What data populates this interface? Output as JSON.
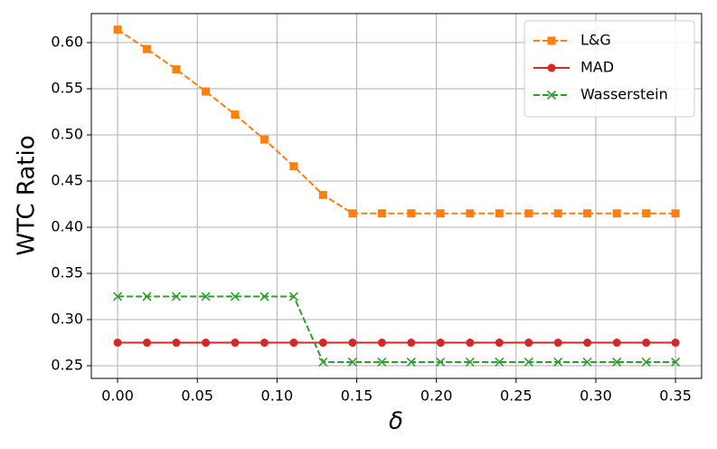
{
  "chart_data": {
    "type": "line",
    "xlabel": "δ",
    "ylabel": "WTC Ratio",
    "x": [
      0,
      0.0184,
      0.0368,
      0.0553,
      0.0737,
      0.0921,
      0.1105,
      0.1289,
      0.1474,
      0.1658,
      0.1842,
      0.2026,
      0.2211,
      0.2395,
      0.2579,
      0.2763,
      0.2947,
      0.3132,
      0.3316,
      0.35
    ],
    "series": [
      {
        "name": "L&G",
        "color": "#ff7f0e",
        "linestyle": "dashed",
        "marker": "square",
        "values": [
          0.614,
          0.593,
          0.571,
          0.547,
          0.522,
          0.495,
          0.466,
          0.435,
          0.415,
          0.415,
          0.415,
          0.415,
          0.415,
          0.415,
          0.415,
          0.415,
          0.415,
          0.415,
          0.415,
          0.415
        ]
      },
      {
        "name": "MAD",
        "color": "#d62728",
        "linestyle": "solid",
        "marker": "circle",
        "values": [
          0.275,
          0.275,
          0.275,
          0.275,
          0.275,
          0.275,
          0.275,
          0.275,
          0.275,
          0.275,
          0.275,
          0.275,
          0.275,
          0.275,
          0.275,
          0.275,
          0.275,
          0.275,
          0.275,
          0.275
        ]
      },
      {
        "name": "Wasserstein",
        "color": "#2ca02c",
        "linestyle": "dashed",
        "marker": "x",
        "values": [
          0.325,
          0.325,
          0.325,
          0.325,
          0.325,
          0.325,
          0.325,
          0.254,
          0.254,
          0.254,
          0.254,
          0.254,
          0.254,
          0.254,
          0.254,
          0.254,
          0.254,
          0.254,
          0.254,
          0.254
        ]
      }
    ],
    "xlim": [
      -0.0165,
      0.3664
    ],
    "ylim": [
      0.2363,
      0.6314
    ],
    "xticks": [
      {
        "value": 0,
        "label": "0.00"
      },
      0.05,
      {
        "value": 0.1,
        "label": "0.10"
      },
      0.15,
      {
        "value": 0.2,
        "label": "0.20"
      },
      0.25,
      {
        "value": 0.3,
        "label": "0.30"
      },
      0.35
    ],
    "yticks": [
      0.25,
      {
        "value": 0.3,
        "label": "0.30"
      },
      0.35,
      {
        "value": 0.4,
        "label": "0.40"
      },
      0.45,
      {
        "value": 0.5,
        "label": "0.50"
      },
      0.55,
      {
        "value": 0.6,
        "label": "0.60"
      }
    ],
    "grid": true,
    "legend": "upper right"
  }
}
